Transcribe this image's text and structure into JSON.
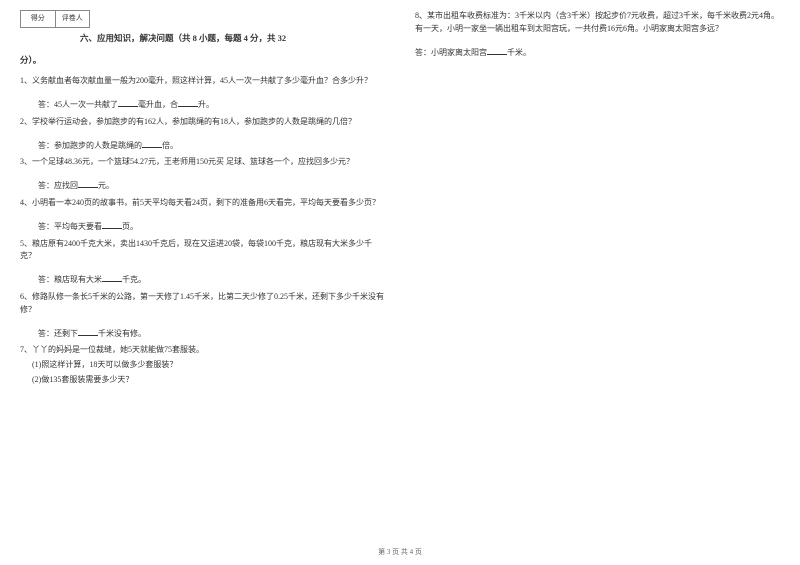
{
  "scorebox": {
    "left": "得分",
    "right": "评卷人"
  },
  "section": {
    "title_line1": "六、应用知识，解决问题（共 8 小题，每题 4 分，共 32",
    "title_line2": "分）。"
  },
  "left": {
    "q1": "1、义务献血者每次献血量一般为200毫升，照这样计算，45人一次一共献了多少毫升血？合多少升？",
    "a1a": "答：45人一次一共献了",
    "a1b": "毫升血，合",
    "a1c": "升。",
    "q2": "2、学校举行运动会，参加跑步的有162人，参加跳绳的有18人，参加跑步的人数是跳绳的几倍？",
    "a2a": "答：参加跑步的人数是跳绳的",
    "a2b": "倍。",
    "q3": "3、一个足球48.36元，一个篮球54.27元，王老师用150元买   足球、篮球各一个，应找回多少元？",
    "a3a": "答：应找回",
    "a3b": "元。",
    "q4": "4、小明看一本240页的故事书，前5天平均每天看24页，剩下的准备用6天看完，平均每天要看多少页？",
    "a4a": "答：平均每天要看",
    "a4b": "页。",
    "q5": "5、粮店原有2400千克大米，卖出1430千克后，现在又运进20袋，每袋100千克，粮店现有大米多少千克？",
    "a5a": "答：粮店现有大米",
    "a5b": "千克。",
    "q6": "6、修路队修一条长5千米的公路，第一天修了1.45千米，比第二天少修了0.25千米，还剩下多少千米没有修？",
    "a6a": "答：还剩下",
    "a6b": "千米没有修。",
    "q7": "7、丫丫的妈妈是一位裁缝，她5天就能做75套服装。",
    "q7_1": "(1)照这样计算，18天可以做多少套服装？",
    "q7_2": "(2)做135套服装需要多少天？"
  },
  "right": {
    "q8": "8、某市出租车收费标准为：3千米以内（含3千米）按起步价7元收费，超过3千米，每千米收费2元4角。有一天，小明一家坐一辆出租车到太阳宫玩，一共付费16元6角。小明家离太阳宫多远？",
    "a8a": "答：小明家离太阳宫",
    "a8b": "千米。"
  },
  "footer": "第 3 页 共 4 页"
}
